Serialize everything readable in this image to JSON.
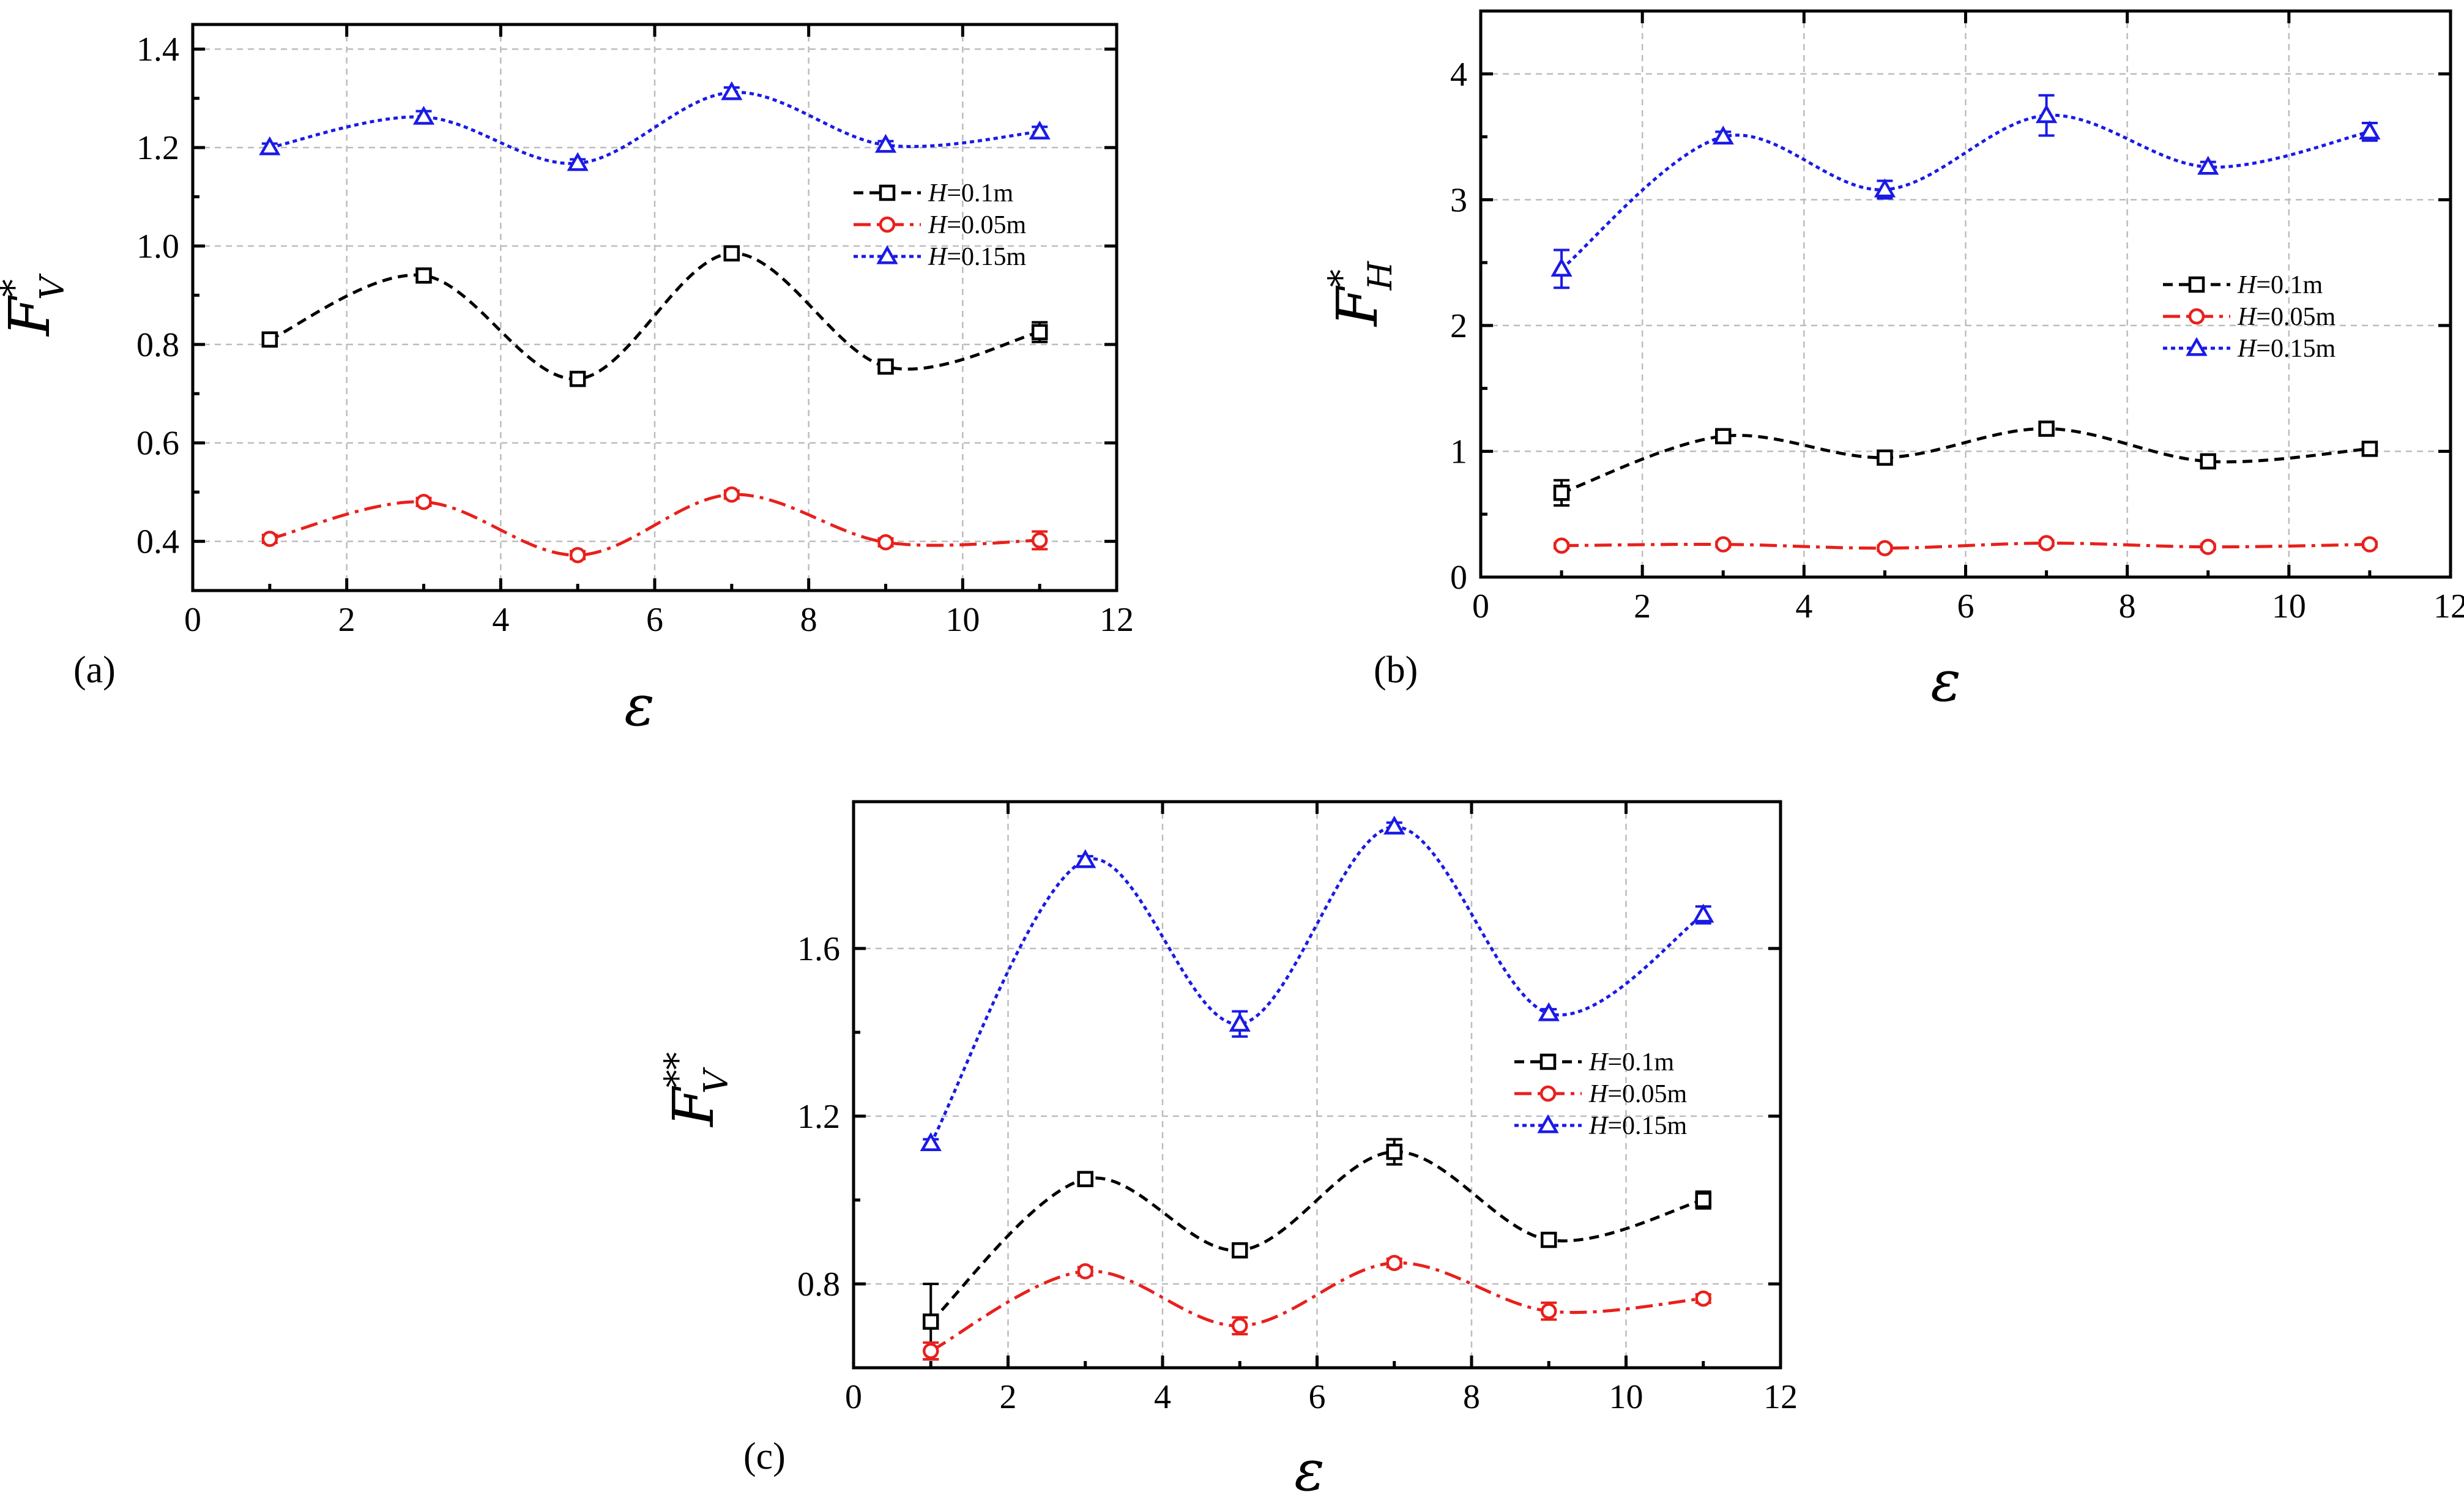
{
  "chart_data": [
    {
      "id": "a",
      "type": "line",
      "panel_label": "(a)",
      "xlabel": "ε",
      "ylabel": {
        "main": "F",
        "sup": "*",
        "sub": "V"
      },
      "xlim": [
        0,
        12
      ],
      "ylim": [
        0.3,
        1.45
      ],
      "xticks": [
        0,
        2,
        4,
        6,
        8,
        10,
        12
      ],
      "yticks": [
        0.4,
        0.6,
        0.8,
        1.0,
        1.2,
        1.4
      ],
      "ytick_labels": [
        "0.4",
        "0.6",
        "0.8",
        "1.0",
        "1.2",
        "1.4"
      ],
      "legend": {
        "position": "center-right"
      },
      "series": [
        {
          "name": "H=0.1m",
          "var": "H",
          "rest": "=0.1m",
          "color": "#000000",
          "marker": "square",
          "dash": "16 10",
          "x": [
            1,
            3,
            5,
            7,
            9,
            11
          ],
          "y": [
            0.81,
            0.94,
            0.73,
            0.985,
            0.755,
            0.825
          ],
          "err": [
            0.01,
            0.01,
            0.008,
            0.01,
            0.01,
            0.02
          ]
        },
        {
          "name": "H=0.05m",
          "var": "H",
          "rest": "=0.05m",
          "color": "#e8201c",
          "marker": "circle",
          "dash": "28 10 6 10",
          "x": [
            1,
            3,
            5,
            7,
            9,
            11
          ],
          "y": [
            0.405,
            0.48,
            0.372,
            0.495,
            0.398,
            0.402
          ],
          "err": [
            0.008,
            0.008,
            0.008,
            0.008,
            0.008,
            0.018
          ]
        },
        {
          "name": "H=0.15m",
          "var": "H",
          "rest": "=0.15m",
          "color": "#1a1ae6",
          "marker": "triangle",
          "dash": "7 6",
          "x": [
            1,
            3,
            5,
            7,
            9,
            11
          ],
          "y": [
            1.2,
            1.262,
            1.168,
            1.312,
            1.205,
            1.232
          ],
          "err": [
            0.008,
            0.012,
            0.008,
            0.01,
            0.008,
            0.01
          ]
        }
      ]
    },
    {
      "id": "b",
      "type": "line",
      "panel_label": "(b)",
      "xlabel": "ε",
      "ylabel": {
        "main": "F",
        "sup": "*",
        "sub": "H"
      },
      "xlim": [
        0,
        12
      ],
      "ylim": [
        0,
        4.5
      ],
      "xticks": [
        0,
        2,
        4,
        6,
        8,
        10,
        12
      ],
      "yticks": [
        0,
        1,
        2,
        3,
        4
      ],
      "ytick_labels": [
        "0",
        "1",
        "2",
        "3",
        "4"
      ],
      "legend": {
        "position": "center-right"
      },
      "series": [
        {
          "name": "H=0.1m",
          "var": "H",
          "rest": "=0.1m",
          "color": "#000000",
          "marker": "square",
          "dash": "16 10",
          "x": [
            1,
            3,
            5,
            7,
            9,
            11
          ],
          "y": [
            0.67,
            1.12,
            0.95,
            1.18,
            0.92,
            1.02
          ],
          "err": [
            0.1,
            0.05,
            0.03,
            0.04,
            0.03,
            0.04
          ]
        },
        {
          "name": "H=0.05m",
          "var": "H",
          "rest": "=0.05m",
          "color": "#e8201c",
          "marker": "circle",
          "dash": "28 10 6 10",
          "x": [
            1,
            3,
            5,
            7,
            9,
            11
          ],
          "y": [
            0.25,
            0.26,
            0.23,
            0.27,
            0.24,
            0.26
          ],
          "err": [
            0.02,
            0.02,
            0.02,
            0.02,
            0.02,
            0.02
          ]
        },
        {
          "name": "H=0.15m",
          "var": "H",
          "rest": "=0.15m",
          "color": "#1a1ae6",
          "marker": "triangle",
          "dash": "7 6",
          "x": [
            1,
            3,
            5,
            7,
            9,
            11
          ],
          "y": [
            2.45,
            3.5,
            3.08,
            3.67,
            3.26,
            3.54
          ],
          "err": [
            0.15,
            0.04,
            0.07,
            0.16,
            0.04,
            0.07
          ]
        }
      ]
    },
    {
      "id": "c",
      "type": "line",
      "panel_label": "(c)",
      "xlabel": "ε",
      "ylabel": {
        "main": "F",
        "sup": "**",
        "sub": "V"
      },
      "xlim": [
        0,
        12
      ],
      "ylim": [
        0.6,
        1.95
      ],
      "xticks": [
        0,
        2,
        4,
        6,
        8,
        10,
        12
      ],
      "yticks": [
        0.8,
        1.2,
        1.6
      ],
      "ytick_labels": [
        "0.8",
        "1.2",
        "1.6"
      ],
      "legend": {
        "position": "center-right"
      },
      "series": [
        {
          "name": "H=0.1m",
          "var": "H",
          "rest": "=0.1m",
          "color": "#000000",
          "marker": "square",
          "dash": "16 10",
          "x": [
            1,
            3,
            5,
            7,
            9,
            11
          ],
          "y": [
            0.71,
            1.05,
            0.88,
            1.115,
            0.905,
            1.0
          ],
          "err": [
            0.09,
            0.01,
            0.01,
            0.03,
            0.01,
            0.02
          ]
        },
        {
          "name": "H=0.05m",
          "var": "H",
          "rest": "=0.05m",
          "color": "#e8201c",
          "marker": "circle",
          "dash": "28 10 6 10",
          "x": [
            1,
            3,
            5,
            7,
            9,
            11
          ],
          "y": [
            0.64,
            0.83,
            0.7,
            0.85,
            0.735,
            0.765
          ],
          "err": [
            0.02,
            0.01,
            0.02,
            0.01,
            0.02,
            0.01
          ]
        },
        {
          "name": "H=0.15m",
          "var": "H",
          "rest": "=0.15m",
          "color": "#1a1ae6",
          "marker": "triangle",
          "dash": "7 6",
          "x": [
            1,
            3,
            5,
            7,
            9,
            11
          ],
          "y": [
            1.135,
            1.81,
            1.42,
            1.89,
            1.445,
            1.68
          ],
          "err": [
            0.01,
            0.01,
            0.03,
            0.01,
            0.01,
            0.02
          ]
        }
      ]
    }
  ]
}
